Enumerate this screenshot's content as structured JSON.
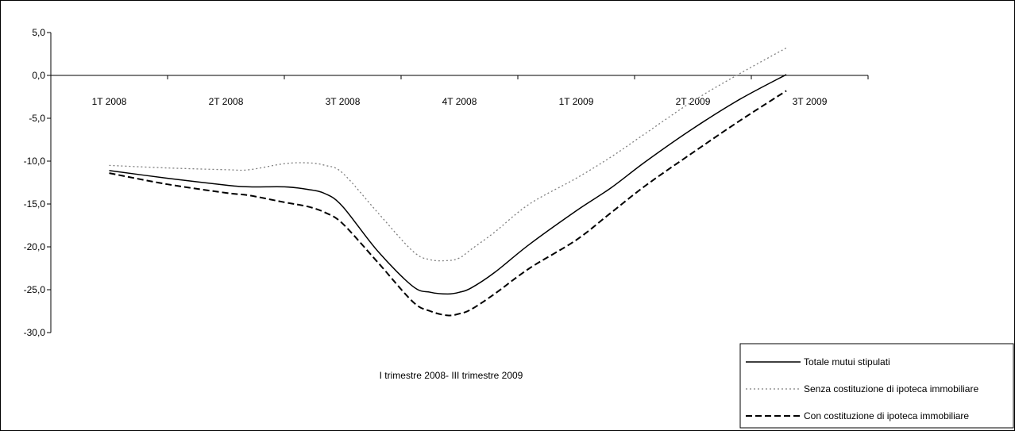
{
  "chart_data": {
    "type": "line",
    "title": "",
    "xlabel": "I trimestre 2008- III trimestre 2009",
    "ylabel": "",
    "categories": [
      "1T 2008",
      "2T 2008",
      "3T 2008",
      "4T 2008",
      "1T 2009",
      "2T 2009",
      "3T 2009"
    ],
    "ylim": [
      -30,
      5
    ],
    "yticks": [
      "5,0",
      "0,0",
      "-5,0",
      "-10,0",
      "-15,0",
      "-20,0",
      "-25,0",
      "-30,0"
    ],
    "y_tick_values": [
      5,
      0,
      -5,
      -10,
      -15,
      -20,
      -25,
      -30
    ],
    "grid": false,
    "legend_position": "bottom-right",
    "series": [
      {
        "name": "Totale mutui stipulati",
        "style": "solid",
        "color": "#000000",
        "x": [
          0,
          0.5,
          1,
          1.2,
          1.5,
          1.7,
          1.85,
          2,
          2.3,
          2.6,
          2.75,
          2.9,
          3.0,
          3.1,
          3.3,
          3.6,
          4,
          4.3,
          4.6,
          5,
          5.4,
          5.8
        ],
        "values": [
          -11.1,
          -12,
          -12.8,
          -13.0,
          -13.0,
          -13.3,
          -13.8,
          -15.3,
          -20.5,
          -24.6,
          -25.3,
          -25.5,
          -25.3,
          -24.8,
          -23.0,
          -19.7,
          -15.8,
          -13.1,
          -10.0,
          -6.2,
          -2.8,
          0.1
        ]
      },
      {
        "name": "Senza costituzione di ipoteca immobiliare",
        "style": "dotted",
        "color": "#7f7f7f",
        "x": [
          0,
          0.5,
          1,
          1.2,
          1.5,
          1.7,
          1.85,
          2,
          2.3,
          2.6,
          2.75,
          2.9,
          3.0,
          3.1,
          3.3,
          3.6,
          4,
          4.3,
          4.6,
          5,
          5.4,
          5.8
        ],
        "values": [
          -10.5,
          -10.8,
          -11.0,
          -11.0,
          -10.3,
          -10.2,
          -10.5,
          -11.4,
          -16.0,
          -20.5,
          -21.5,
          -21.6,
          -21.3,
          -20.3,
          -18.3,
          -15.0,
          -12.0,
          -9.5,
          -6.7,
          -3.0,
          0.2,
          3.2
        ]
      },
      {
        "name": "Con costituzione di ipoteca immobiliare",
        "style": "dashed",
        "color": "#000000",
        "x": [
          0,
          0.5,
          1,
          1.2,
          1.5,
          1.7,
          1.85,
          2,
          2.3,
          2.6,
          2.75,
          2.9,
          3.0,
          3.1,
          3.3,
          3.6,
          4,
          4.3,
          4.6,
          5,
          5.4,
          5.8
        ],
        "values": [
          -11.4,
          -12.7,
          -13.7,
          -14.0,
          -14.8,
          -15.3,
          -16.0,
          -17.3,
          -21.8,
          -26.4,
          -27.5,
          -28.0,
          -27.8,
          -27.3,
          -25.5,
          -22.5,
          -19.2,
          -16.0,
          -12.8,
          -9.0,
          -5.3,
          -1.8
        ]
      }
    ]
  }
}
